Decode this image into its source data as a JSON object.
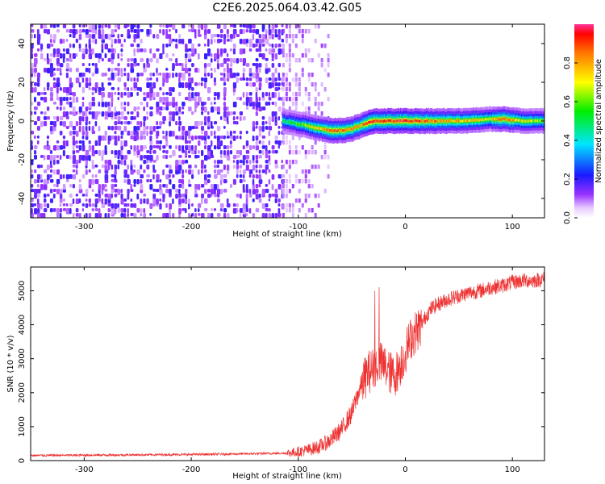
{
  "title": "C2E6.2025.064.03.42.G05",
  "chart_data": [
    {
      "type": "heatmap",
      "xlabel": "Height of straight line (km)",
      "ylabel": "Frequency (Hz)",
      "xlim": [
        -350,
        130
      ],
      "ylim": [
        -50,
        50
      ],
      "xticks": [
        -300,
        -200,
        -100,
        0,
        100
      ],
      "yticks": [
        -40,
        -20,
        0,
        20,
        40
      ],
      "colorbar": {
        "label": "Normalized spectral amplitude",
        "range": [
          0,
          1
        ],
        "ticks": [
          0.0,
          0.2,
          0.4,
          0.6,
          0.8
        ]
      },
      "noise_region_x": [
        -350,
        -115
      ],
      "sparse_noise_region_x": [
        -115,
        -70
      ],
      "signal_ridge": {
        "x": [
          -115,
          -105,
          -95,
          -90,
          -80,
          -70,
          -60,
          -50,
          -40,
          -35,
          -30,
          -20,
          -10,
          0,
          20,
          50,
          80,
          90,
          110,
          130
        ],
        "frequency": [
          0,
          -1,
          -2,
          -3,
          -4,
          -5,
          -5,
          -4,
          -2,
          -1,
          0,
          0,
          0,
          0,
          0,
          0,
          1,
          1,
          0,
          0
        ],
        "amplitude": [
          0.5,
          0.55,
          0.6,
          0.7,
          0.75,
          0.85,
          0.85,
          0.8,
          0.85,
          0.9,
          0.9,
          0.9,
          0.9,
          0.95,
          0.85,
          0.75,
          0.7,
          0.9,
          0.7,
          0.6
        ]
      },
      "grid": false
    },
    {
      "type": "line",
      "xlabel": "Height of straight line (km)",
      "ylabel": "SNR (10 * v/v)",
      "xlim": [
        -350,
        130
      ],
      "ylim": [
        0,
        5700
      ],
      "xticks": [
        -300,
        -200,
        -100,
        0,
        100
      ],
      "yticks": [
        0,
        1000,
        2000,
        3000,
        4000,
        5000
      ],
      "color": "#ee3333",
      "series": [
        {
          "x": [
            -350,
            -300,
            -250,
            -200,
            -150,
            -110,
            -100,
            -90,
            -80,
            -70,
            -60,
            -50,
            -45,
            -40,
            -35,
            -30,
            -25,
            -20,
            -15,
            -10,
            -5,
            0,
            5,
            10,
            15,
            20,
            25,
            30,
            40,
            50,
            60,
            70,
            80,
            90,
            100,
            110,
            120,
            130
          ],
          "values": [
            150,
            160,
            170,
            180,
            200,
            220,
            260,
            320,
            420,
            600,
            900,
            1400,
            1900,
            2300,
            2600,
            2700,
            2900,
            2800,
            2600,
            2500,
            2800,
            3200,
            3600,
            3800,
            4000,
            4300,
            4500,
            4600,
            4750,
            4850,
            4950,
            5000,
            5100,
            5150,
            5250,
            5300,
            5300,
            5350
          ]
        }
      ],
      "grid": false
    }
  ]
}
